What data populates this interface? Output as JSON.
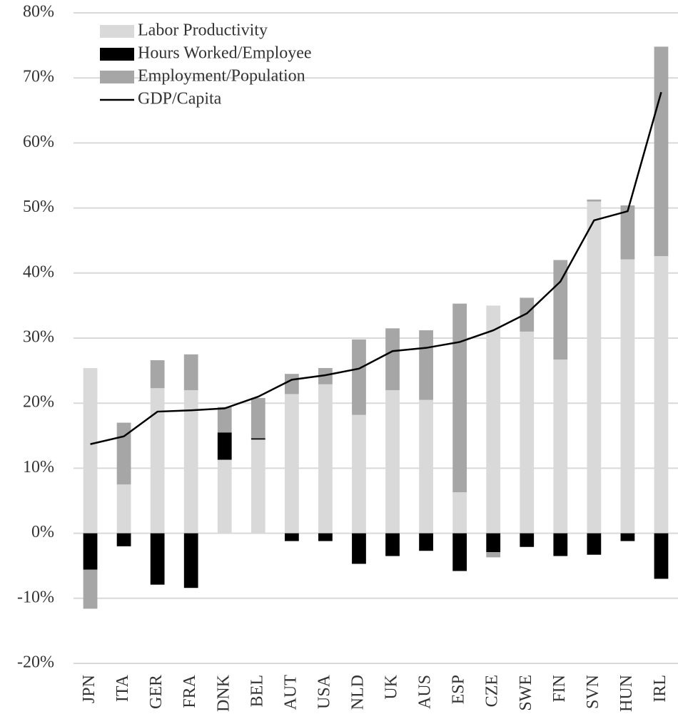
{
  "chart_data": {
    "type": "bar",
    "stacked": true,
    "categories": [
      "JPN",
      "ITA",
      "GER",
      "FRA",
      "DNK",
      "BEL",
      "AUT",
      "USA",
      "NLD",
      "UK",
      "AUS",
      "ESP",
      "CZE",
      "SWE",
      "FIN",
      "SVN",
      "HUN",
      "IRL"
    ],
    "series": [
      {
        "name": "Labor Productivity",
        "type": "bar",
        "color": "#d9d9d9",
        "values": [
          25.4,
          7.5,
          22.3,
          22.0,
          11.3,
          14.4,
          21.4,
          22.9,
          18.2,
          22.0,
          20.5,
          6.3,
          35.0,
          31.0,
          26.7,
          51.0,
          42.1,
          42.6
        ]
      },
      {
        "name": "Hours Worked/Employee",
        "type": "bar",
        "color": "#000000",
        "values": [
          -5.6,
          -2.0,
          -7.9,
          -8.4,
          4.2,
          0.2,
          -1.2,
          -1.2,
          -4.7,
          -3.5,
          -2.7,
          -5.8,
          -2.9,
          -2.1,
          -3.5,
          -3.3,
          -1.2,
          -7.0
        ]
      },
      {
        "name": "Employment/Population",
        "type": "bar",
        "color": "#a6a6a6",
        "values": [
          -6.0,
          9.5,
          4.3,
          5.5,
          3.9,
          6.2,
          3.1,
          2.5,
          11.6,
          9.5,
          10.7,
          29.0,
          -0.8,
          5.2,
          15.3,
          0.3,
          8.3,
          32.2
        ]
      },
      {
        "name": "GDP/Capita",
        "type": "line",
        "color": "#000000",
        "values": [
          13.7,
          14.9,
          18.7,
          18.9,
          19.2,
          21.0,
          23.6,
          24.3,
          25.3,
          28.0,
          28.5,
          29.4,
          31.2,
          33.8,
          38.7,
          48.1,
          49.5,
          67.8
        ]
      }
    ],
    "ylim": [
      -20,
      80
    ],
    "yticks": [
      {
        "value": -20,
        "label": "-20%"
      },
      {
        "value": -10,
        "label": "-10%"
      },
      {
        "value": 0,
        "label": "0%"
      },
      {
        "value": 10,
        "label": "10%"
      },
      {
        "value": 20,
        "label": "20%"
      },
      {
        "value": 30,
        "label": "30%"
      },
      {
        "value": 40,
        "label": "40%"
      },
      {
        "value": 50,
        "label": "50%"
      },
      {
        "value": 60,
        "label": "60%"
      },
      {
        "value": 70,
        "label": "70%"
      },
      {
        "value": 80,
        "label": "80%"
      }
    ],
    "grid": true,
    "legend": "top-left"
  }
}
